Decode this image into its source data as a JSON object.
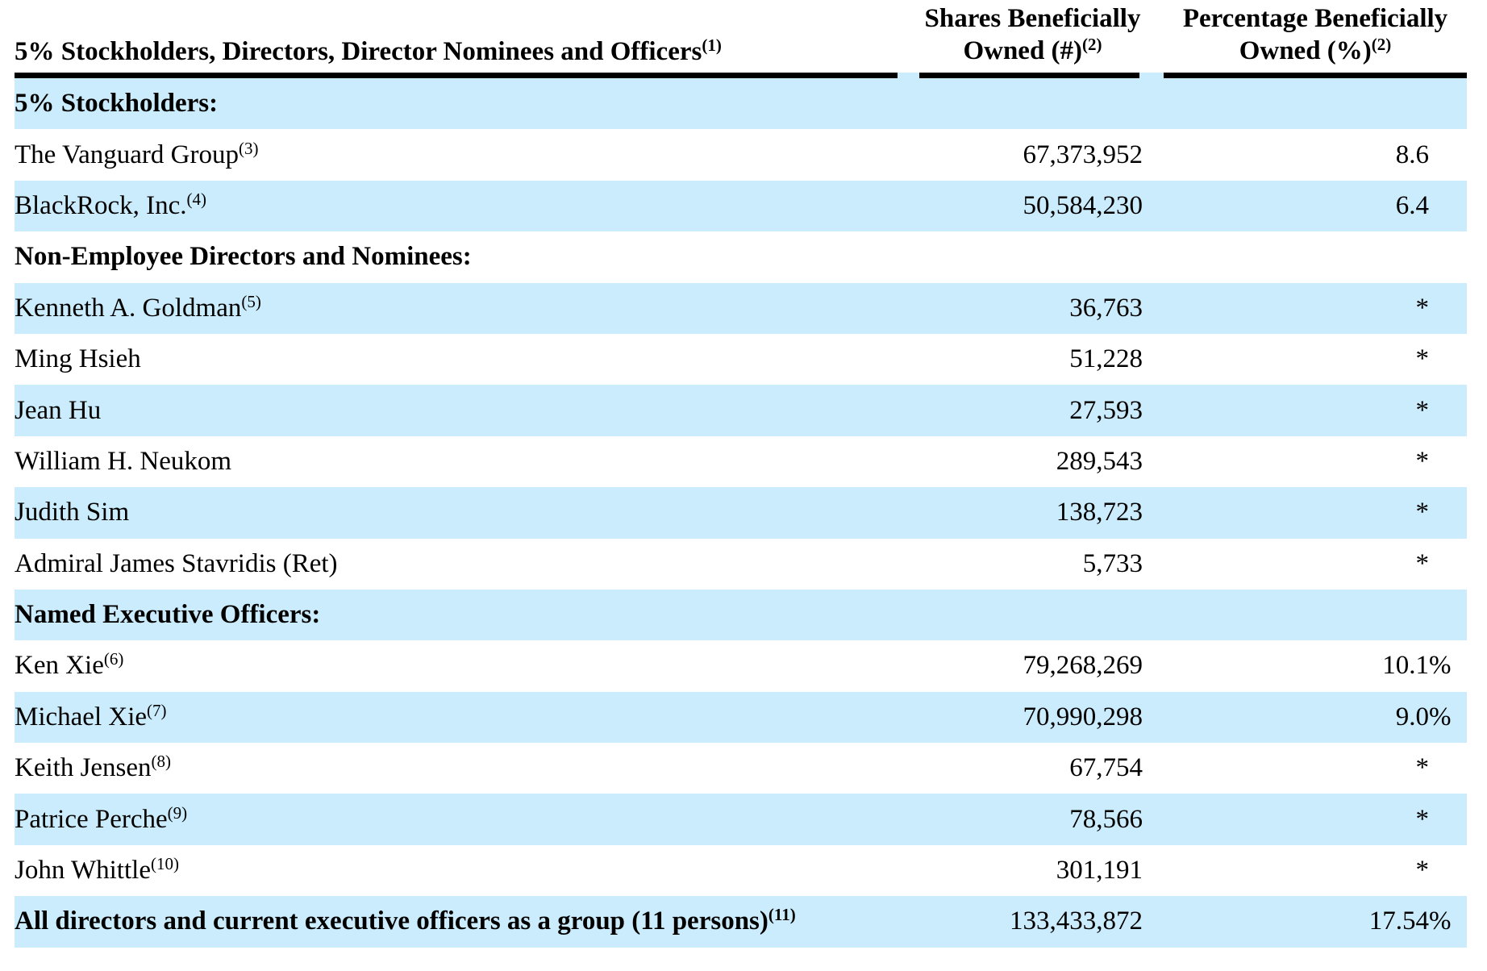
{
  "colors": {
    "highlight": "#cbecfc",
    "rule": "#000000",
    "text": "#000000"
  },
  "header": {
    "col1": {
      "text": "5% Stockholders, Directors, Director Nominees and Officers",
      "sup": "(1)"
    },
    "col2": {
      "line1": "Shares Beneficially",
      "line2": "Owned (#)",
      "sup": "(2)"
    },
    "col3": {
      "line1": "Percentage Beneficially",
      "line2": "Owned (%)",
      "sup": "(2)"
    }
  },
  "rows": [
    {
      "type": "section",
      "label": "5% Stockholders:",
      "sup": "",
      "shares": "",
      "pct": "",
      "pct_suffix": "",
      "shaded": true
    },
    {
      "type": "data",
      "label": "The Vanguard Group",
      "sup": "(3)",
      "shares": "67,373,952",
      "pct": "8.6",
      "pct_suffix": "",
      "shaded": false
    },
    {
      "type": "data",
      "label": "BlackRock, Inc.",
      "sup": "(4)",
      "shares": "50,584,230",
      "pct": "6.4",
      "pct_suffix": "",
      "shaded": true
    },
    {
      "type": "section",
      "label": "Non-Employee Directors and Nominees:",
      "sup": "",
      "shares": "",
      "pct": "",
      "pct_suffix": "",
      "shaded": false
    },
    {
      "type": "data",
      "label": "Kenneth A. Goldman",
      "sup": "(5)",
      "shares": "36,763",
      "pct": "*",
      "pct_suffix": "",
      "shaded": true
    },
    {
      "type": "data",
      "label": "Ming Hsieh",
      "sup": "",
      "shares": "51,228",
      "pct": "*",
      "pct_suffix": "",
      "shaded": false
    },
    {
      "type": "data",
      "label": "Jean Hu",
      "sup": "",
      "shares": "27,593",
      "pct": "*",
      "pct_suffix": "",
      "shaded": true
    },
    {
      "type": "data",
      "label": "William H. Neukom",
      "sup": "",
      "shares": "289,543",
      "pct": "*",
      "pct_suffix": "",
      "shaded": false
    },
    {
      "type": "data",
      "label": "Judith Sim",
      "sup": "",
      "shares": "138,723",
      "pct": "*",
      "pct_suffix": "",
      "shaded": true
    },
    {
      "type": "data",
      "label": "Admiral James Stavridis (Ret)",
      "sup": "",
      "shares": "5,733",
      "pct": "*",
      "pct_suffix": "",
      "shaded": false
    },
    {
      "type": "section",
      "label": "Named Executive Officers:",
      "sup": "",
      "shares": "",
      "pct": "",
      "pct_suffix": "",
      "shaded": true
    },
    {
      "type": "data",
      "label": "Ken Xie",
      "sup": "(6)",
      "shares": "79,268,269",
      "pct": "10.1",
      "pct_suffix": "%",
      "shaded": false
    },
    {
      "type": "data",
      "label": "Michael Xie",
      "sup": "(7)",
      "shares": "70,990,298",
      "pct": "9.0",
      "pct_suffix": "%",
      "shaded": true
    },
    {
      "type": "data",
      "label": "Keith Jensen",
      "sup": "(8)",
      "shares": "67,754",
      "pct": "*",
      "pct_suffix": "",
      "shaded": false
    },
    {
      "type": "data",
      "label": "Patrice Perche",
      "sup": "(9)",
      "shares": "78,566",
      "pct": "*",
      "pct_suffix": "",
      "shaded": true
    },
    {
      "type": "data",
      "label": "John Whittle",
      "sup": "(10)",
      "shares": "301,191",
      "pct": "*",
      "pct_suffix": "",
      "shaded": false
    },
    {
      "type": "total",
      "label": "All directors and current executive officers as a group (11 persons)",
      "sup": "(11)",
      "shares": "133,433,872",
      "pct": "17.54",
      "pct_suffix": "%",
      "shaded": true
    }
  ]
}
